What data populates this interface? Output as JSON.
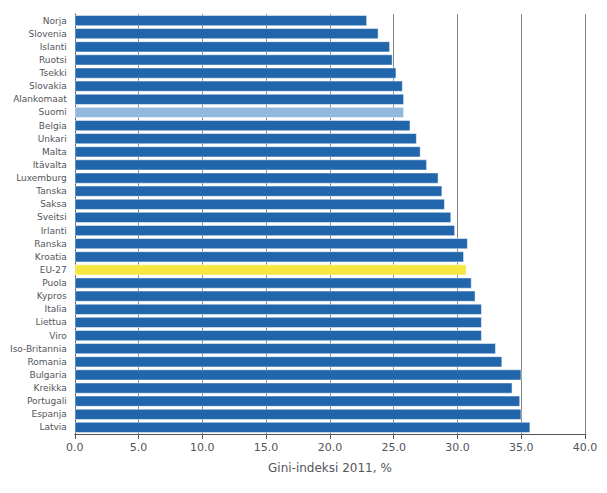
{
  "chart_data": {
    "type": "bar",
    "orientation": "horizontal",
    "categories": [
      "Latvia",
      "Espanja",
      "Portugali",
      "Kreikka",
      "Bulgaria",
      "Romania",
      "Iso-Britannia",
      "Viro",
      "Liettua",
      "Italia",
      "Kypros",
      "Puola",
      "EU-27",
      "Kroatia",
      "Ranska",
      "Irlanti",
      "Sveitsi",
      "Saksa",
      "Tanska",
      "Luxemburg",
      "Itävalta",
      "Malta",
      "Unkari",
      "Belgia",
      "Suomi",
      "Alankomaat",
      "Slovakia",
      "Tsekki",
      "Ruotsi",
      "Islanti",
      "Slovenia",
      "Norja"
    ],
    "values": [
      35.7,
      35.0,
      34.9,
      34.3,
      35.0,
      33.5,
      33.0,
      31.9,
      31.9,
      31.9,
      31.4,
      31.1,
      30.7,
      30.5,
      30.8,
      29.8,
      29.5,
      29.0,
      28.8,
      28.5,
      27.6,
      27.1,
      26.8,
      26.3,
      25.8,
      25.8,
      25.7,
      25.2,
      24.9,
      24.7,
      23.8,
      22.9
    ],
    "colors": [
      "#2166AA",
      "#2166AA",
      "#2166AA",
      "#2166AA",
      "#2166AA",
      "#2166AA",
      "#2166AA",
      "#2166AA",
      "#2166AA",
      "#2166AA",
      "#2166AA",
      "#2166AA",
      "#F5E642",
      "#2166AA",
      "#2166AA",
      "#2166AA",
      "#2166AA",
      "#2166AA",
      "#2166AA",
      "#2166AA",
      "#2166AA",
      "#2166AA",
      "#2166AA",
      "#2166AA",
      "#92B8DE",
      "#2166AA",
      "#2166AA",
      "#2166AA",
      "#2166AA",
      "#2166AA",
      "#2166AA",
      "#2166AA"
    ],
    "xlabel": "Gini-indeksi 2011, %",
    "xlim": [
      0,
      40
    ],
    "xticks": [
      {
        "value": 0,
        "label": "0.0"
      },
      {
        "value": 5,
        "label": "5.0"
      },
      {
        "value": 10,
        "label": "10.0"
      },
      {
        "value": 15,
        "label": "15.0"
      },
      {
        "value": 20,
        "label": "20.0"
      },
      {
        "value": 25,
        "label": "25.0"
      },
      {
        "value": 30,
        "label": "30.0"
      },
      {
        "value": 35,
        "label": "35.0"
      },
      {
        "value": 40,
        "label": "40.0"
      }
    ],
    "grid": true
  }
}
